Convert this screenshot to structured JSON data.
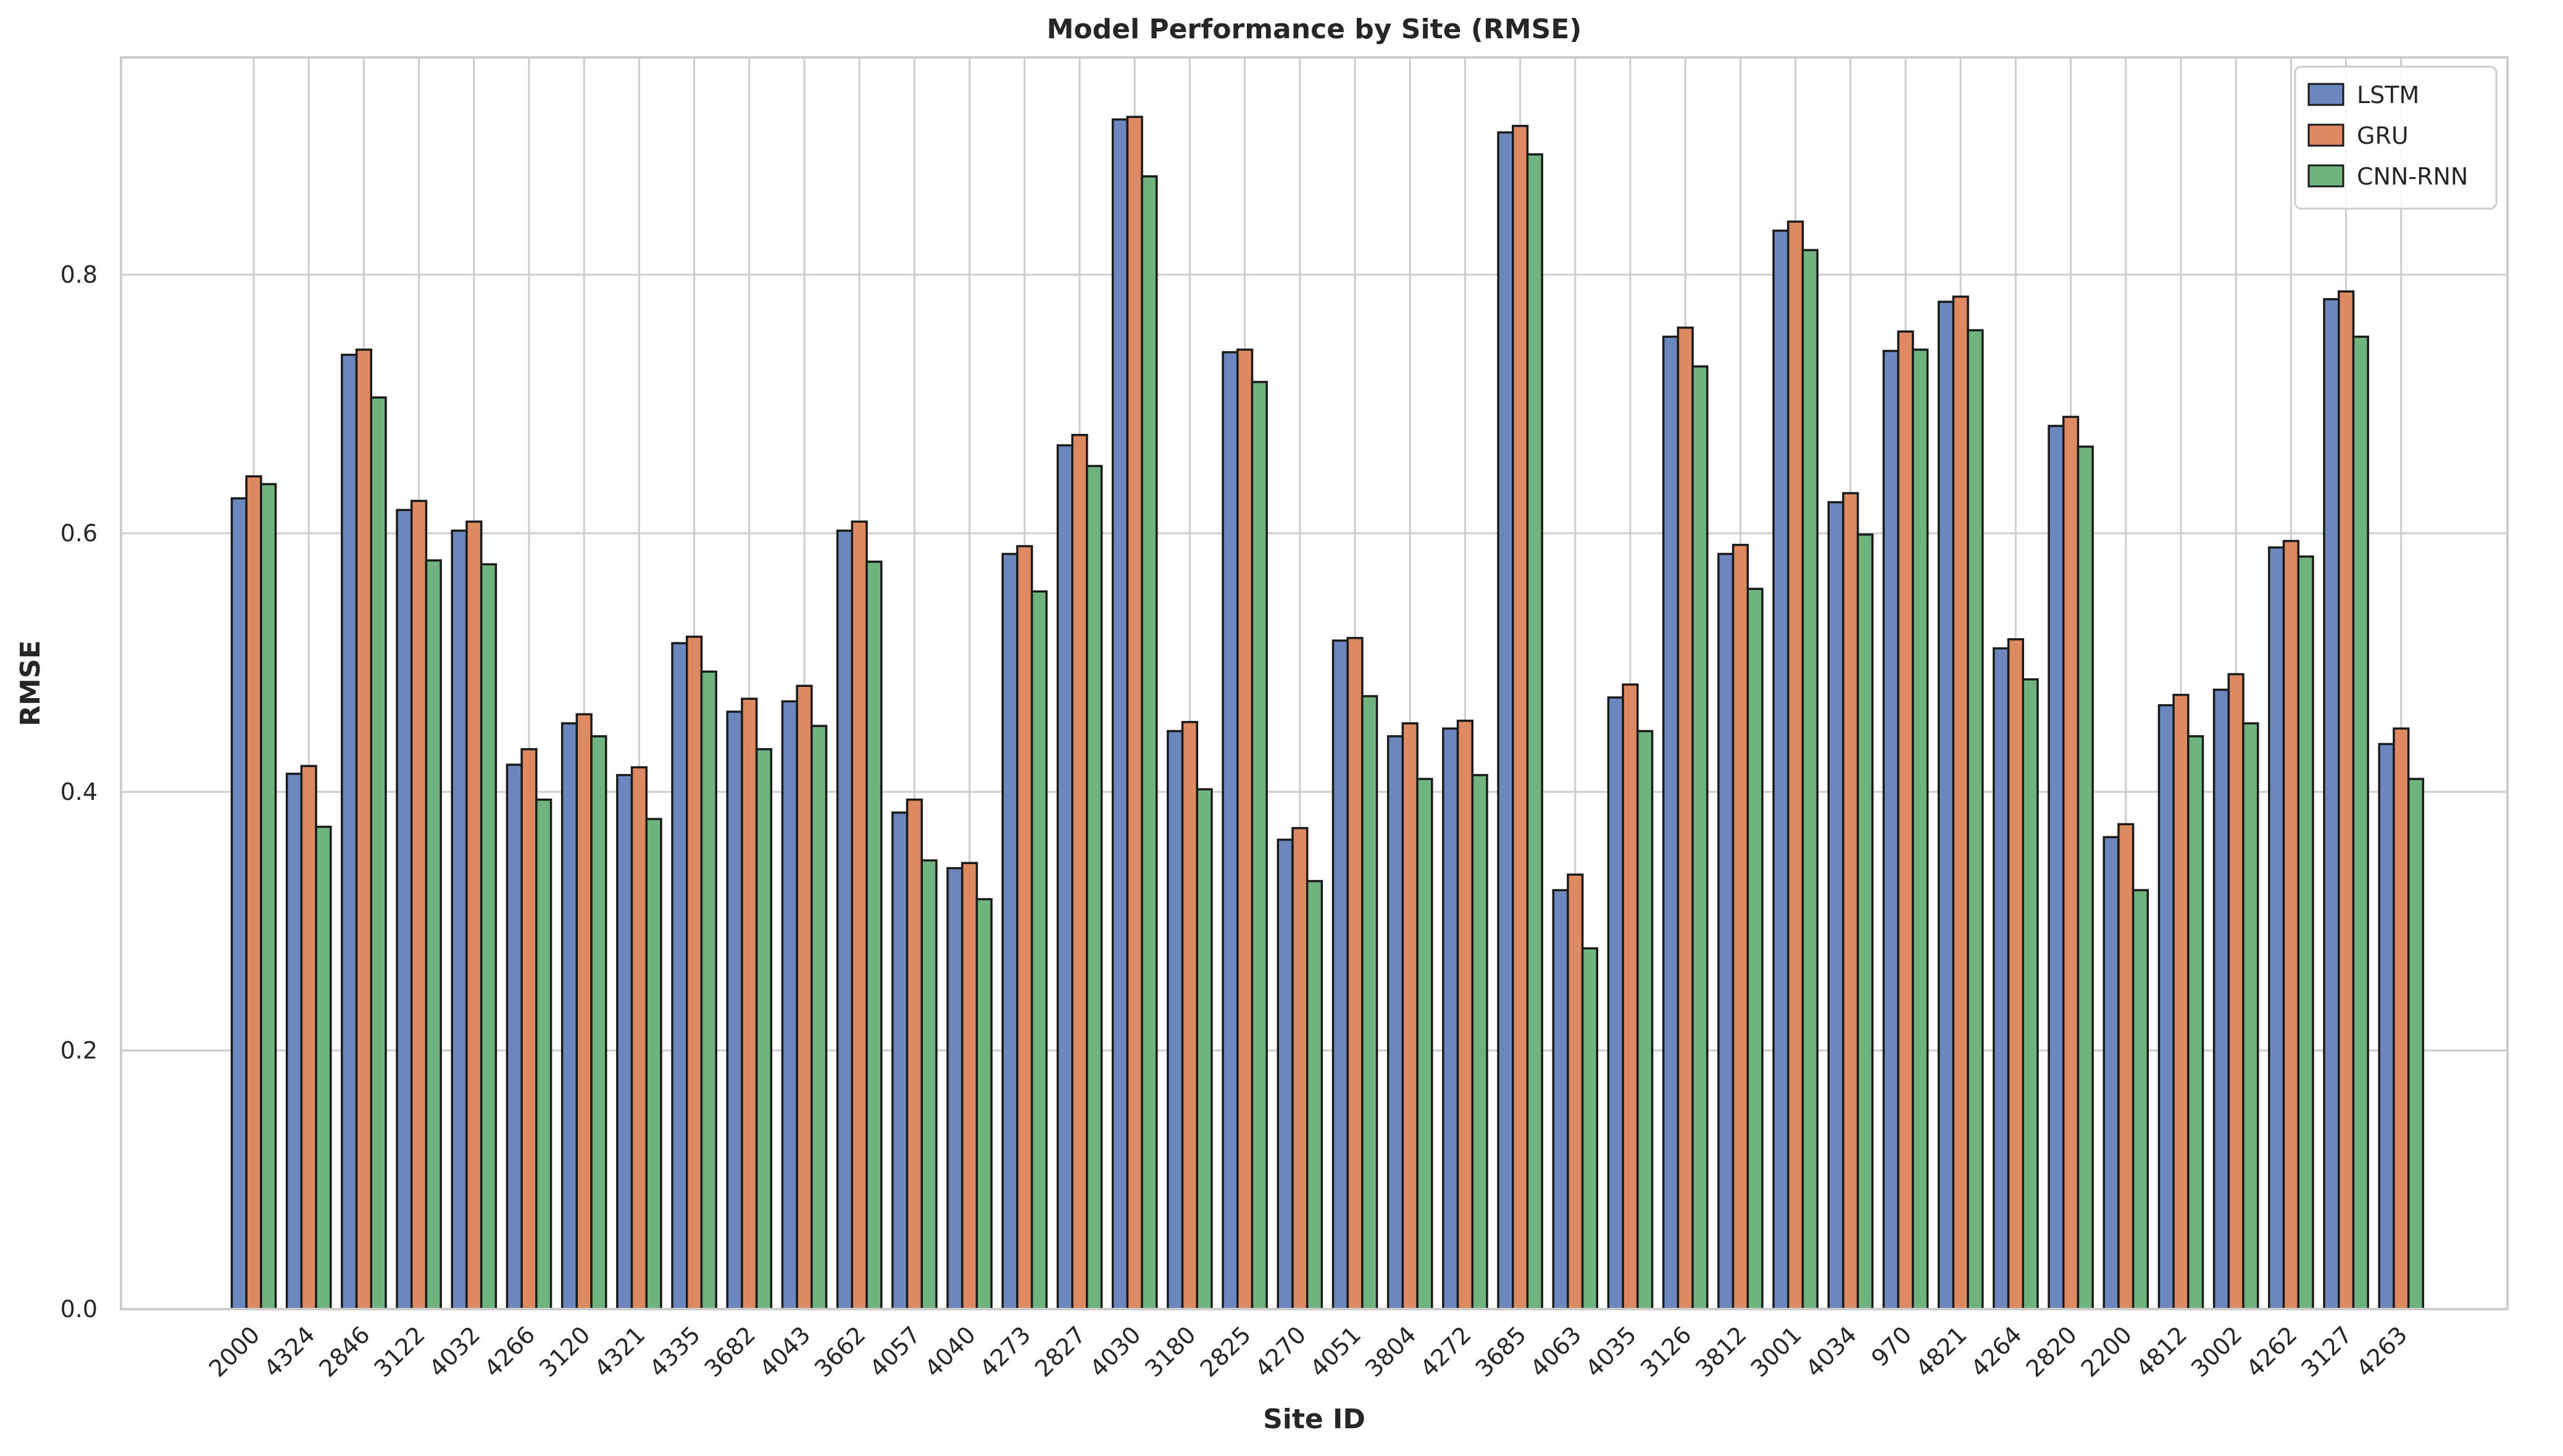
{
  "colors": {
    "LSTM": "#6b87be",
    "GRU": "#dd8a63",
    "CNN-RNN": "#6fb47f"
  },
  "chart_data": {
    "type": "bar",
    "title": "Model Performance by Site (RMSE)",
    "xlabel": "Site ID",
    "ylabel": "RMSE",
    "ylim": [
      0,
      0.968
    ],
    "yticks": [
      0.0,
      0.2,
      0.4,
      0.6,
      0.8
    ],
    "ytick_labels": [
      "0.0",
      "0.2",
      "0.4",
      "0.6",
      "0.8"
    ],
    "grid": true,
    "legend_position": "top-right",
    "categories": [
      "2000",
      "4324",
      "2846",
      "3122",
      "4032",
      "4266",
      "3120",
      "4321",
      "4335",
      "3682",
      "4043",
      "3662",
      "4057",
      "4040",
      "4273",
      "2827",
      "4030",
      "3180",
      "2825",
      "4270",
      "4051",
      "3804",
      "4272",
      "3685",
      "4063",
      "4035",
      "3126",
      "3812",
      "3001",
      "4034",
      "970",
      "4821",
      "4264",
      "2820",
      "2200",
      "4812",
      "3002",
      "4262",
      "3127",
      "4263"
    ],
    "series": [
      {
        "name": "LSTM",
        "values": [
          0.627,
          0.414,
          0.738,
          0.618,
          0.602,
          0.421,
          0.453,
          0.413,
          0.515,
          0.462,
          0.47,
          0.602,
          0.384,
          0.341,
          0.584,
          0.668,
          0.92,
          0.447,
          0.74,
          0.363,
          0.517,
          0.443,
          0.449,
          0.91,
          0.324,
          0.473,
          0.752,
          0.584,
          0.834,
          0.624,
          0.741,
          0.779,
          0.511,
          0.683,
          0.365,
          0.467,
          0.479,
          0.589,
          0.781,
          0.437
        ]
      },
      {
        "name": "GRU",
        "values": [
          0.644,
          0.42,
          0.742,
          0.625,
          0.609,
          0.433,
          0.46,
          0.419,
          0.52,
          0.472,
          0.482,
          0.609,
          0.394,
          0.345,
          0.59,
          0.676,
          0.922,
          0.454,
          0.742,
          0.372,
          0.519,
          0.453,
          0.455,
          0.915,
          0.336,
          0.483,
          0.759,
          0.591,
          0.841,
          0.631,
          0.756,
          0.783,
          0.518,
          0.69,
          0.375,
          0.475,
          0.491,
          0.594,
          0.787,
          0.449
        ]
      },
      {
        "name": "CNN-RNN",
        "values": [
          0.638,
          0.373,
          0.705,
          0.579,
          0.576,
          0.394,
          0.443,
          0.379,
          0.493,
          0.433,
          0.451,
          0.578,
          0.347,
          0.317,
          0.555,
          0.652,
          0.876,
          0.402,
          0.717,
          0.331,
          0.474,
          0.41,
          0.413,
          0.893,
          0.279,
          0.447,
          0.729,
          0.557,
          0.819,
          0.599,
          0.742,
          0.757,
          0.487,
          0.667,
          0.324,
          0.443,
          0.453,
          0.582,
          0.752,
          0.41
        ]
      }
    ]
  }
}
